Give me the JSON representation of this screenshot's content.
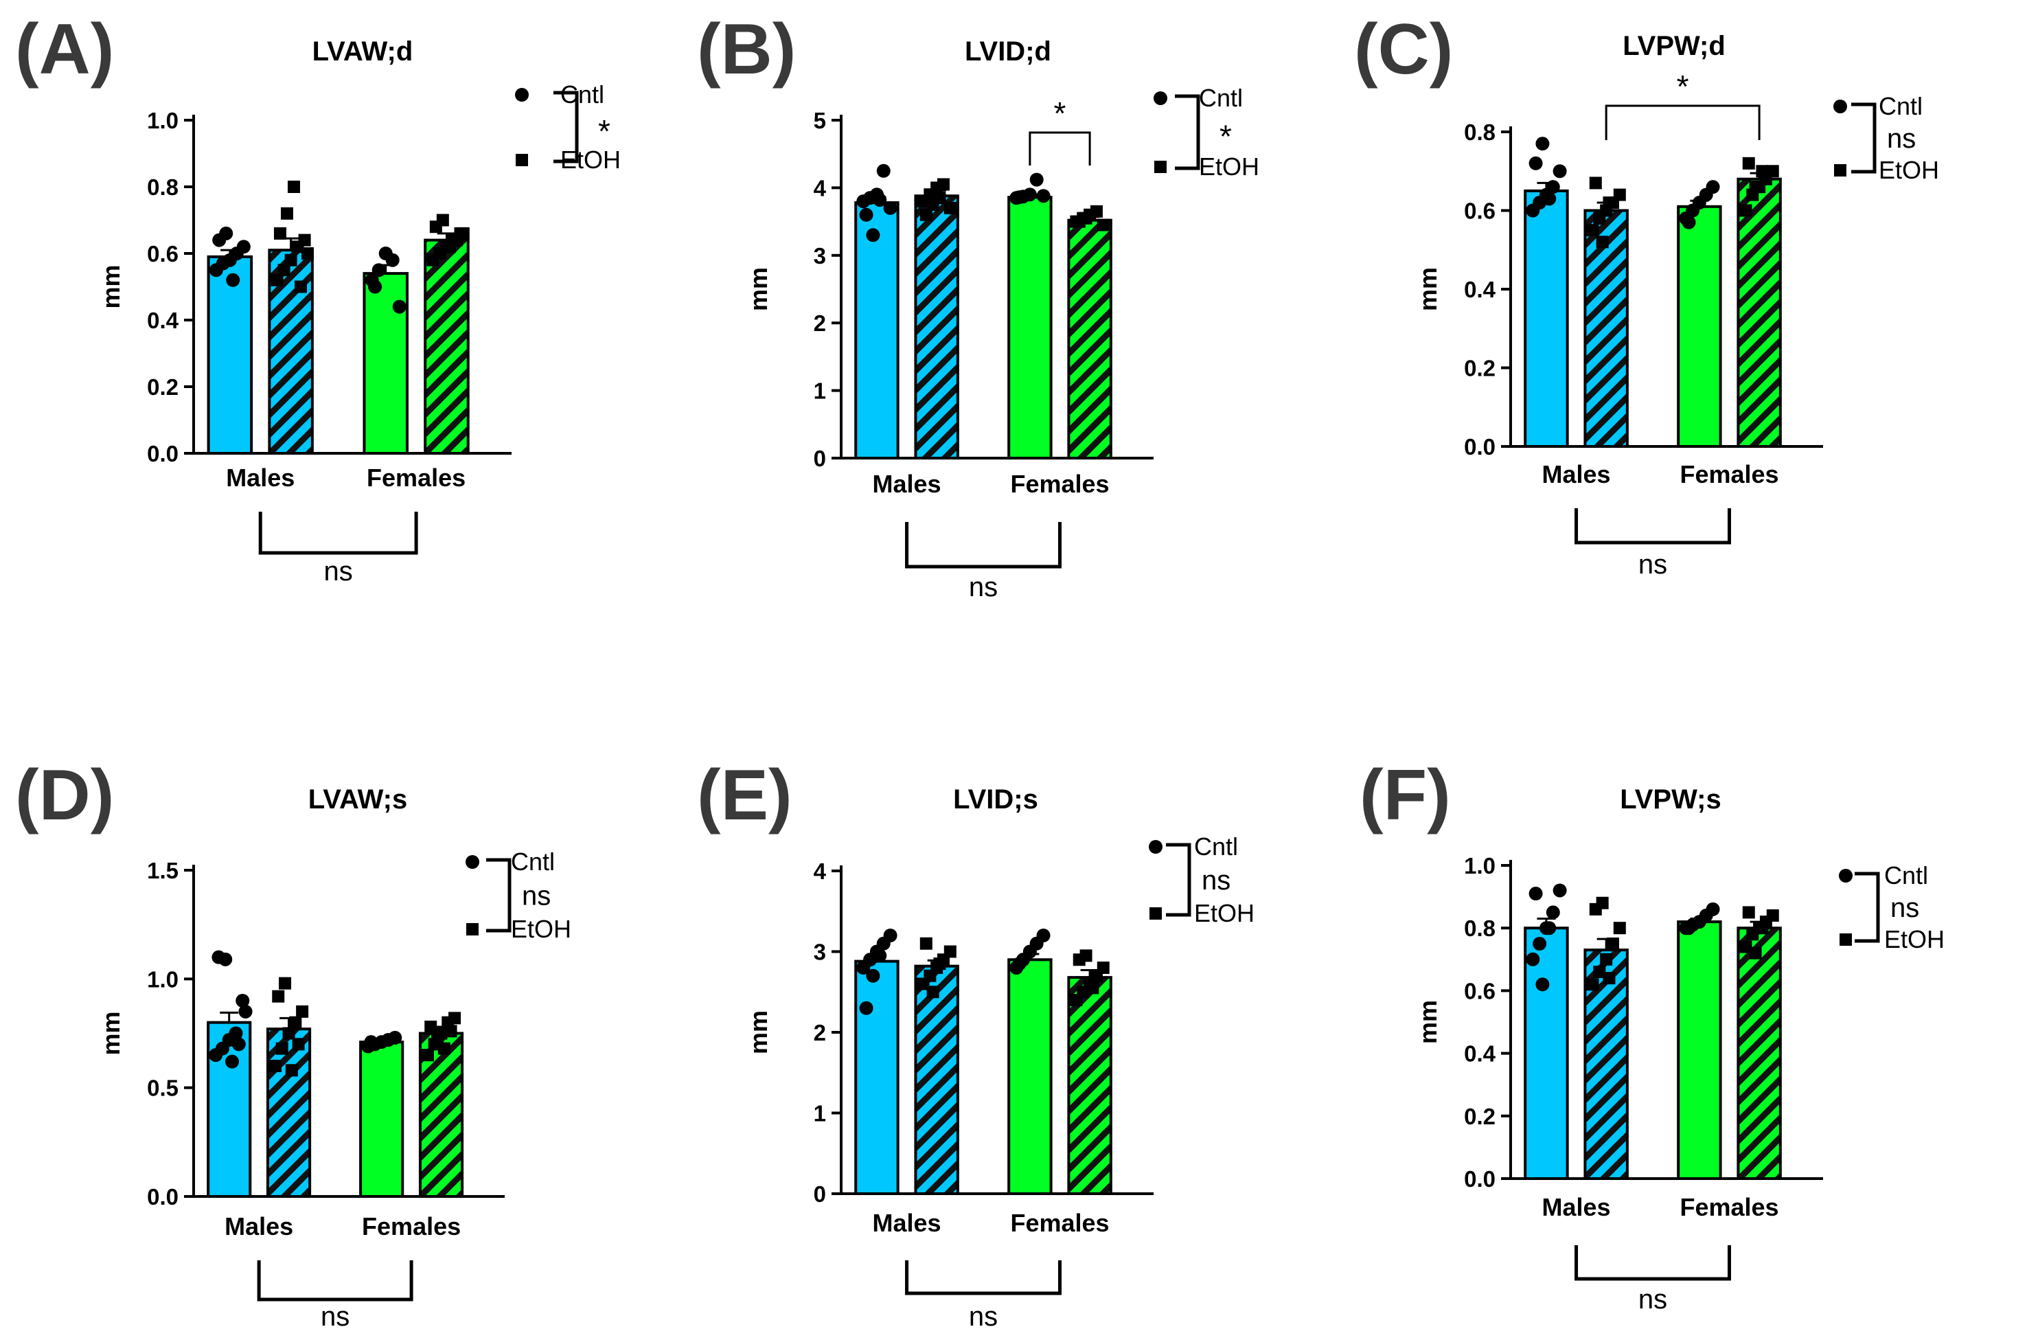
{
  "colors": {
    "males": "#00c8ff",
    "females": "#00ff22",
    "hatch_cntl_fill": "none",
    "hatch_etoh_pattern": "diagonal-black-stripes",
    "axis": "#000000",
    "panel_letter": "#3a3a3a"
  },
  "chart_data": [
    {
      "type": "bar",
      "panel": "(A)",
      "title": "LVAW;d",
      "ylabel": "mm",
      "ylim": [
        0,
        1.0
      ],
      "yticks": [
        "0.0",
        "0.2",
        "0.4",
        "0.6",
        "0.8",
        "1.0"
      ],
      "categories": [
        "Males",
        "Females"
      ],
      "series": [
        {
          "name": "Cntl",
          "values": [
            0.59,
            0.54
          ],
          "sem": [
            0.02,
            0.025
          ],
          "points": [
            [
              0.55,
              0.57,
              0.58,
              0.6,
              0.62,
              0.64,
              0.66,
              0.52
            ],
            [
              0.52,
              0.55,
              0.6,
              0.58,
              0.44,
              0.5
            ]
          ]
        },
        {
          "name": "EtOH",
          "values": [
            0.61,
            0.64
          ],
          "sem": [
            0.035,
            0.02
          ],
          "points": [
            [
              0.52,
              0.55,
              0.58,
              0.62,
              0.64,
              0.66,
              0.72,
              0.8,
              0.5,
              0.6
            ],
            [
              0.58,
              0.6,
              0.62,
              0.64,
              0.66,
              0.68,
              0.7,
              0.62,
              0.64,
              0.66
            ]
          ]
        }
      ],
      "legend": {
        "items": [
          "Cntl",
          "EtOH"
        ],
        "bracket_label": "*"
      },
      "stat_bracket": {
        "label": "ns"
      },
      "pair_bracket": null
    },
    {
      "type": "bar",
      "panel": "(B)",
      "title": "LVID;d",
      "ylabel": "mm",
      "ylim": [
        0,
        5
      ],
      "yticks": [
        "0",
        "1",
        "2",
        "3",
        "4",
        "5"
      ],
      "categories": [
        "Males",
        "Females"
      ],
      "series": [
        {
          "name": "Cntl",
          "values": [
            3.78,
            3.86
          ],
          "sem": [
            0.08,
            0.03
          ],
          "points": [
            [
              3.8,
              3.85,
              3.9,
              4.25,
              3.7,
              3.6,
              3.3,
              3.82
            ],
            [
              3.85,
              3.87,
              3.9,
              4.12,
              3.88,
              3.86
            ]
          ]
        },
        {
          "name": "EtOH",
          "values": [
            3.88,
            3.52
          ],
          "sem": [
            0.08,
            0.05
          ],
          "points": [
            [
              3.8,
              3.9,
              4.0,
              4.05,
              3.7,
              3.6,
              3.75,
              3.85
            ],
            [
              3.5,
              3.55,
              3.6,
              3.65,
              3.45,
              3.5,
              3.55
            ]
          ]
        }
      ],
      "legend": {
        "items": [
          "Cntl",
          "EtOH"
        ],
        "bracket_label": "*"
      },
      "stat_bracket": {
        "label": "ns"
      },
      "pair_bracket": {
        "label": "*",
        "from": [
          1,
          0
        ],
        "to": [
          1,
          1
        ]
      }
    },
    {
      "type": "bar",
      "panel": "(C)",
      "title": "LVPW;d",
      "ylabel": "mm",
      "ylim": [
        0,
        0.8
      ],
      "yticks": [
        "0.0",
        "0.2",
        "0.4",
        "0.6",
        "0.8"
      ],
      "categories": [
        "Males",
        "Females"
      ],
      "series": [
        {
          "name": "Cntl",
          "values": [
            0.65,
            0.61
          ],
          "sem": [
            0.02,
            0.015
          ],
          "points": [
            [
              0.6,
              0.62,
              0.64,
              0.66,
              0.7,
              0.72,
              0.77,
              0.63
            ],
            [
              0.58,
              0.6,
              0.62,
              0.64,
              0.66,
              0.57
            ]
          ]
        },
        {
          "name": "EtOH",
          "values": [
            0.6,
            0.68
          ],
          "sem": [
            0.02,
            0.015
          ],
          "points": [
            [
              0.55,
              0.58,
              0.6,
              0.62,
              0.64,
              0.67,
              0.52,
              0.62
            ],
            [
              0.6,
              0.64,
              0.66,
              0.68,
              0.7,
              0.72,
              0.66,
              0.7
            ]
          ]
        }
      ],
      "legend": {
        "items": [
          "Cntl",
          "EtOH"
        ],
        "bracket_label": "ns"
      },
      "stat_bracket": {
        "label": "ns"
      },
      "pair_bracket": {
        "label": "*",
        "from": [
          0,
          1
        ],
        "to": [
          1,
          1
        ]
      }
    },
    {
      "type": "bar",
      "panel": "(D)",
      "title": "LVAW;s",
      "ylabel": "mm",
      "ylim": [
        0,
        1.5
      ],
      "yticks": [
        "0.0",
        "0.5",
        "1.0",
        "1.5"
      ],
      "categories": [
        "Males",
        "Females"
      ],
      "series": [
        {
          "name": "Cntl",
          "values": [
            0.8,
            0.71
          ],
          "sem": [
            0.045,
            0.01
          ],
          "points": [
            [
              0.65,
              0.68,
              0.72,
              0.75,
              0.9,
              1.1,
              1.09,
              0.62,
              0.7,
              0.85
            ],
            [
              0.69,
              0.7,
              0.71,
              0.72,
              0.73,
              0.71
            ]
          ]
        },
        {
          "name": "EtOH",
          "values": [
            0.77,
            0.75
          ],
          "sem": [
            0.05,
            0.03
          ],
          "points": [
            [
              0.6,
              0.68,
              0.75,
              0.8,
              0.85,
              0.92,
              0.98,
              0.58,
              0.7
            ],
            [
              0.65,
              0.7,
              0.75,
              0.8,
              0.82,
              0.78,
              0.72,
              0.68,
              0.76
            ]
          ]
        }
      ],
      "legend": {
        "items": [
          "Cntl",
          "EtOH"
        ],
        "bracket_label": "ns"
      },
      "stat_bracket": {
        "label": "ns"
      },
      "pair_bracket": null
    },
    {
      "type": "bar",
      "panel": "(E)",
      "title": "LVID;s",
      "ylabel": "mm",
      "ylim": [
        0,
        4
      ],
      "yticks": [
        "0",
        "1",
        "2",
        "3",
        "4"
      ],
      "categories": [
        "Males",
        "Females"
      ],
      "series": [
        {
          "name": "Cntl",
          "values": [
            2.88,
            2.9
          ],
          "sem": [
            0.09,
            0.07
          ],
          "points": [
            [
              2.8,
              2.9,
              3.0,
              3.1,
              3.2,
              2.3,
              2.7,
              2.95
            ],
            [
              2.8,
              2.9,
              3.0,
              3.1,
              3.2,
              2.85
            ]
          ]
        },
        {
          "name": "EtOH",
          "values": [
            2.82,
            2.68
          ],
          "sem": [
            0.07,
            0.09
          ],
          "points": [
            [
              2.6,
              2.7,
              2.8,
              2.9,
              3.0,
              3.1,
              2.5,
              2.85
            ],
            [
              2.4,
              2.5,
              2.6,
              2.7,
              2.8,
              2.9,
              2.95,
              2.55
            ]
          ]
        }
      ],
      "legend": {
        "items": [
          "Cntl",
          "EtOH"
        ],
        "bracket_label": "ns"
      },
      "stat_bracket": {
        "label": "ns"
      },
      "pair_bracket": null
    },
    {
      "type": "bar",
      "panel": "(F)",
      "title": "LVPW;s",
      "ylabel": "mm",
      "ylim": [
        0,
        1.0
      ],
      "yticks": [
        "0.0",
        "0.2",
        "0.4",
        "0.6",
        "0.8",
        "1.0"
      ],
      "categories": [
        "Males",
        "Females"
      ],
      "series": [
        {
          "name": "Cntl",
          "values": [
            0.8,
            0.82
          ],
          "sem": [
            0.03,
            0.01
          ],
          "points": [
            [
              0.7,
              0.75,
              0.8,
              0.85,
              0.92,
              0.91,
              0.62,
              0.8
            ],
            [
              0.8,
              0.81,
              0.82,
              0.84,
              0.86,
              0.8
            ]
          ]
        },
        {
          "name": "EtOH",
          "values": [
            0.73,
            0.8
          ],
          "sem": [
            0.035,
            0.02
          ],
          "points": [
            [
              0.62,
              0.66,
              0.7,
              0.75,
              0.8,
              0.86,
              0.88,
              0.64
            ],
            [
              0.74,
              0.78,
              0.8,
              0.82,
              0.84,
              0.85,
              0.72,
              0.8
            ]
          ]
        }
      ],
      "legend": {
        "items": [
          "Cntl",
          "EtOH"
        ],
        "bracket_label": "ns"
      },
      "stat_bracket": {
        "label": "ns"
      },
      "pair_bracket": null
    }
  ]
}
